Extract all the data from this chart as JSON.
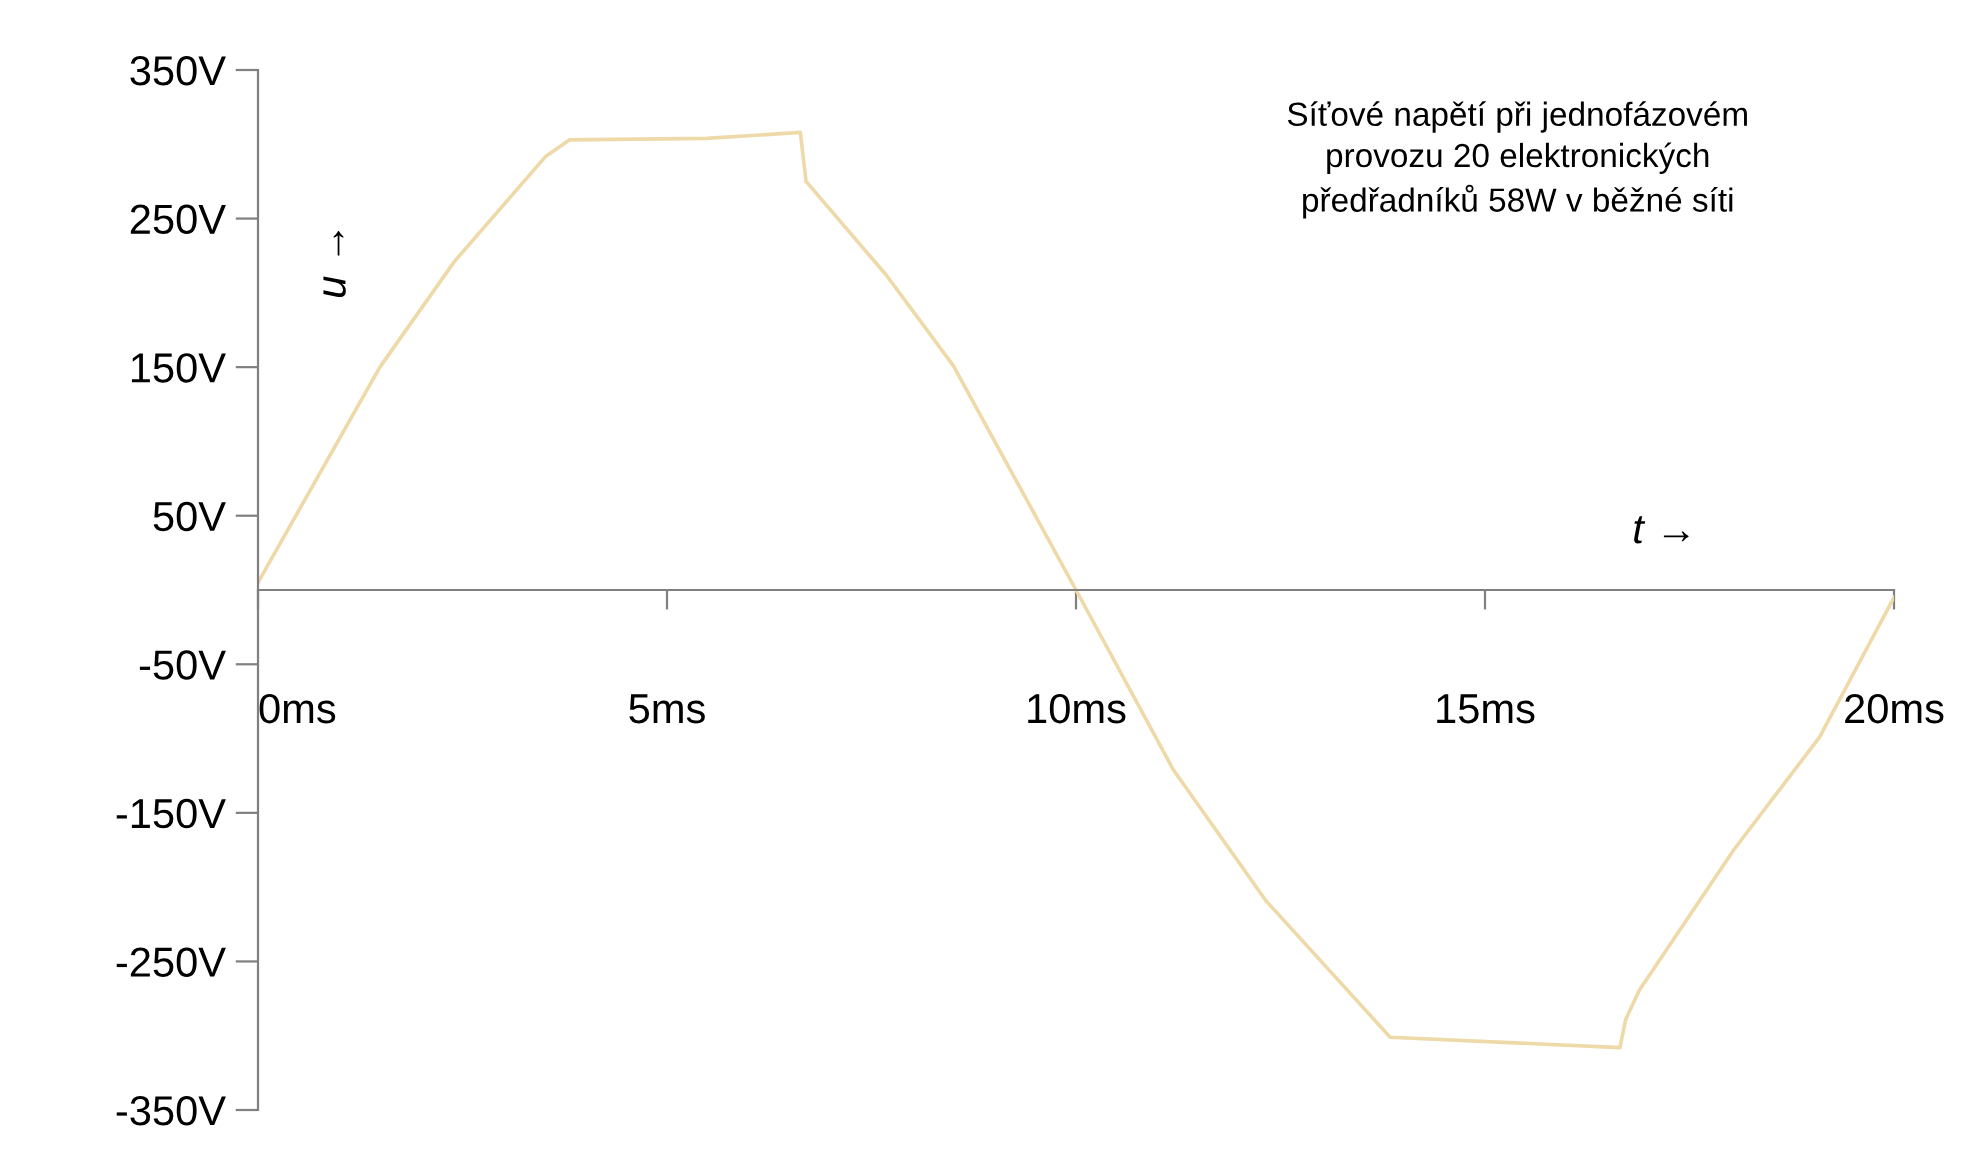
{
  "chart_data": {
    "type": "line",
    "xlabel": "t →",
    "ylabel": "u →",
    "annotations": [
      "Síťové napětí při jednofázovém\nprovozu 20 elektronických\npředřadníků 58W v běžné síti"
    ],
    "series": [
      {
        "color": "#eed9a8",
        "x": [
          0,
          1.49,
          2.4,
          3.52,
          3.81,
          5.48,
          6.63,
          6.7,
          7.68,
          8.5,
          10.0,
          11.19,
          12.32,
          13.84,
          16.65,
          16.72,
          16.89,
          18.04,
          19.09,
          20
        ],
        "values": [
          5,
          150,
          221,
          292,
          303,
          304,
          308,
          275,
          212,
          151,
          0,
          -121,
          -209,
          -301,
          -308,
          -289,
          -269,
          -175,
          -99,
          -5
        ]
      }
    ],
    "xlim": [
      0,
      20
    ],
    "ylim": [
      -350,
      350
    ],
    "xticks": [
      {
        "value": 0,
        "label": "0ms"
      },
      {
        "value": 5,
        "label": "5ms"
      },
      {
        "value": 10,
        "label": "10ms"
      },
      {
        "value": 15,
        "label": "15ms"
      },
      {
        "value": 20,
        "label": "20ms"
      }
    ],
    "yticks": [
      {
        "value": 350,
        "label": "350V"
      },
      {
        "value": 250,
        "label": "250V"
      },
      {
        "value": 150,
        "label": "150V"
      },
      {
        "value": 50,
        "label": "50V"
      },
      {
        "value": -50,
        "label": "-50V"
      },
      {
        "value": -150,
        "label": "-150V"
      },
      {
        "value": -250,
        "label": "-250V"
      },
      {
        "value": -350,
        "label": "-350V"
      }
    ],
    "grid": false,
    "legend": false
  }
}
